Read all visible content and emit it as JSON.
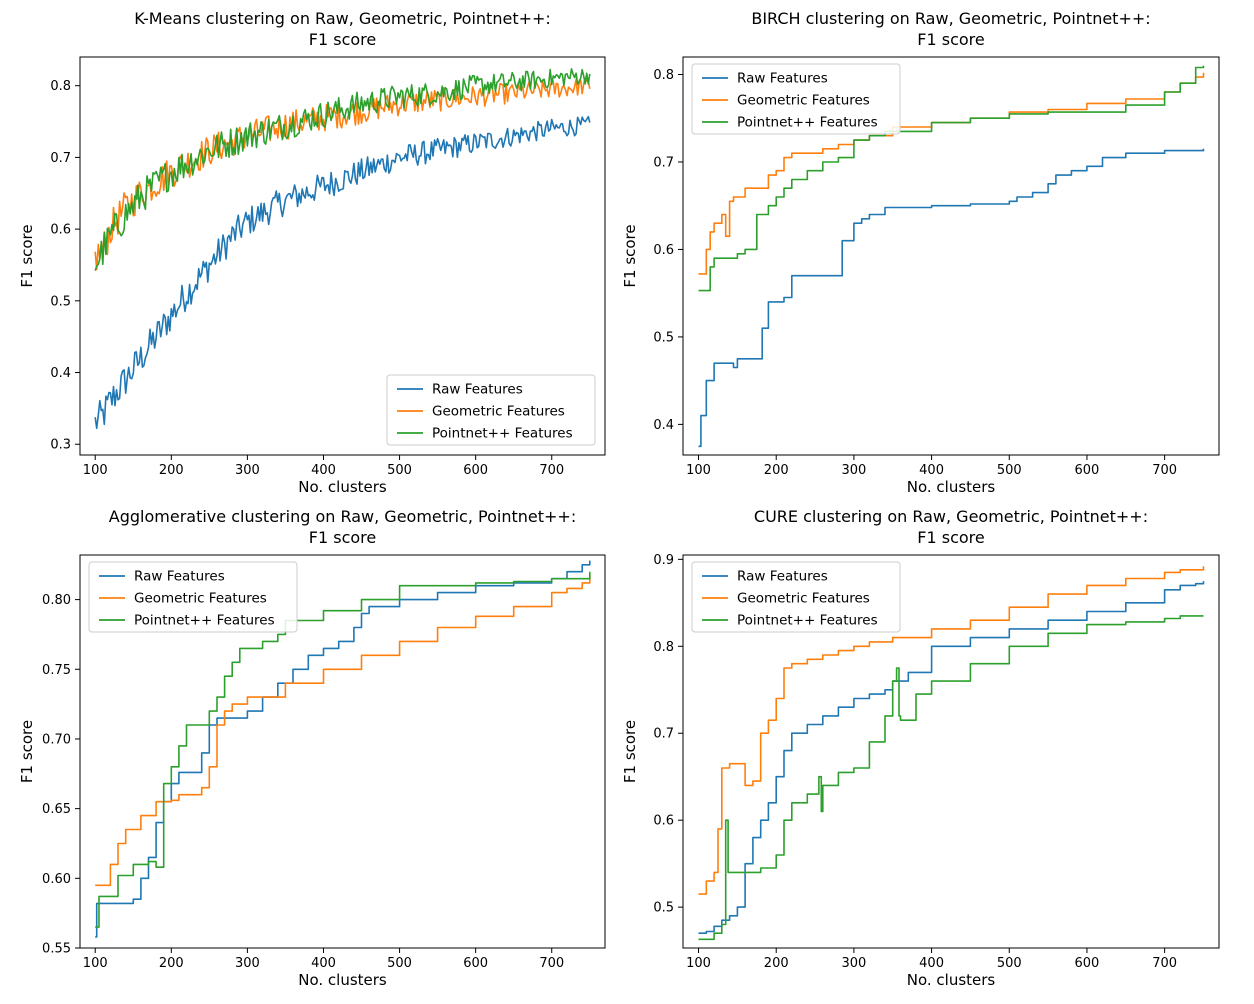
{
  "chart_data": [
    {
      "type": "line",
      "title": "K-Means clustering on Raw, Geometric, Pointnet++:\nF1 score",
      "xlabel": "No. clusters",
      "ylabel": "F1 score",
      "xlim": [
        80,
        770
      ],
      "ylim": [
        0.285,
        0.84
      ],
      "xticks": [
        100,
        200,
        300,
        400,
        500,
        600,
        700
      ],
      "yticks": [
        0.3,
        0.4,
        0.5,
        0.6,
        0.7,
        0.8
      ],
      "legend": "lower-right",
      "grid": false,
      "noise": 0.025,
      "series": [
        {
          "name": "Raw Features",
          "color": "#1f77b4",
          "x": [
            100,
            110,
            120,
            140,
            160,
            180,
            200,
            220,
            250,
            280,
            300,
            350,
            400,
            450,
            500,
            550,
            600,
            650,
            700,
            750
          ],
          "y": [
            0.33,
            0.34,
            0.36,
            0.39,
            0.42,
            0.45,
            0.48,
            0.51,
            0.55,
            0.59,
            0.61,
            0.64,
            0.66,
            0.68,
            0.7,
            0.71,
            0.72,
            0.73,
            0.74,
            0.745
          ]
        },
        {
          "name": "Geometric Features",
          "color": "#ff7f0e",
          "x": [
            100,
            110,
            120,
            140,
            160,
            200,
            250,
            300,
            350,
            400,
            450,
            500,
            550,
            600,
            650,
            700,
            750
          ],
          "y": [
            0.56,
            0.57,
            0.6,
            0.63,
            0.65,
            0.68,
            0.71,
            0.73,
            0.745,
            0.755,
            0.765,
            0.775,
            0.78,
            0.785,
            0.79,
            0.795,
            0.8
          ]
        },
        {
          "name": "Pointnet++ Features",
          "color": "#2ca02c",
          "x": [
            100,
            110,
            120,
            140,
            160,
            200,
            250,
            300,
            350,
            400,
            450,
            500,
            550,
            600,
            650,
            700,
            750
          ],
          "y": [
            0.55,
            0.57,
            0.59,
            0.62,
            0.645,
            0.68,
            0.71,
            0.73,
            0.745,
            0.76,
            0.775,
            0.785,
            0.79,
            0.8,
            0.805,
            0.81,
            0.815
          ]
        }
      ]
    },
    {
      "type": "line",
      "title": "BIRCH clustering on Raw, Geometric, Pointnet++:\nF1 score",
      "xlabel": "No. clusters",
      "ylabel": "F1 score",
      "xlim": [
        80,
        770
      ],
      "ylim": [
        0.365,
        0.82
      ],
      "xticks": [
        100,
        200,
        300,
        400,
        500,
        600,
        700
      ],
      "yticks": [
        0.4,
        0.5,
        0.6,
        0.7,
        0.8
      ],
      "legend": "upper-left",
      "grid": false,
      "noise": 0,
      "series": [
        {
          "name": "Raw Features",
          "color": "#1f77b4",
          "x": [
            100,
            103,
            105,
            110,
            115,
            120,
            130,
            140,
            145,
            150,
            180,
            182,
            190,
            200,
            210,
            220,
            240,
            250,
            260,
            280,
            285,
            290,
            300,
            310,
            320,
            340,
            400,
            450,
            500,
            510,
            520,
            530,
            550,
            560,
            580,
            600,
            620,
            650,
            700,
            750
          ],
          "y": [
            0.375,
            0.41,
            0.41,
            0.45,
            0.45,
            0.47,
            0.47,
            0.47,
            0.465,
            0.475,
            0.475,
            0.51,
            0.54,
            0.54,
            0.545,
            0.57,
            0.57,
            0.57,
            0.57,
            0.57,
            0.61,
            0.61,
            0.63,
            0.635,
            0.64,
            0.648,
            0.65,
            0.652,
            0.655,
            0.66,
            0.66,
            0.665,
            0.675,
            0.685,
            0.69,
            0.695,
            0.705,
            0.71,
            0.713,
            0.715
          ]
        },
        {
          "name": "Geometric Features",
          "color": "#ff7f0e",
          "x": [
            100,
            105,
            110,
            115,
            120,
            130,
            135,
            140,
            145,
            150,
            160,
            180,
            190,
            200,
            210,
            220,
            240,
            260,
            280,
            300,
            320,
            350,
            400,
            450,
            500,
            550,
            600,
            650,
            700,
            720,
            740,
            750
          ],
          "y": [
            0.572,
            0.572,
            0.6,
            0.62,
            0.63,
            0.64,
            0.615,
            0.655,
            0.66,
            0.66,
            0.67,
            0.67,
            0.685,
            0.69,
            0.705,
            0.71,
            0.71,
            0.715,
            0.72,
            0.725,
            0.73,
            0.74,
            0.745,
            0.75,
            0.757,
            0.76,
            0.767,
            0.772,
            0.78,
            0.79,
            0.797,
            0.802
          ]
        },
        {
          "name": "Pointnet++ Features",
          "color": "#2ca02c",
          "x": [
            100,
            110,
            115,
            120,
            140,
            150,
            160,
            170,
            175,
            180,
            190,
            200,
            210,
            220,
            240,
            260,
            280,
            300,
            320,
            340,
            400,
            450,
            500,
            550,
            600,
            650,
            700,
            720,
            740,
            750
          ],
          "y": [
            0.553,
            0.553,
            0.58,
            0.59,
            0.59,
            0.595,
            0.6,
            0.6,
            0.64,
            0.64,
            0.65,
            0.66,
            0.67,
            0.68,
            0.69,
            0.7,
            0.705,
            0.725,
            0.73,
            0.735,
            0.745,
            0.75,
            0.755,
            0.757,
            0.757,
            0.765,
            0.78,
            0.79,
            0.808,
            0.81
          ]
        }
      ]
    },
    {
      "type": "line",
      "title": "Agglomerative clustering on Raw, Geometric, Pointnet++:\nF1 score",
      "xlabel": "No. clusters",
      "ylabel": "F1 score",
      "xlim": [
        80,
        770
      ],
      "ylim": [
        0.55,
        0.832
      ],
      "xticks": [
        100,
        200,
        300,
        400,
        500,
        600,
        700
      ],
      "yticks": [
        0.55,
        0.6,
        0.65,
        0.7,
        0.75,
        0.8
      ],
      "legend": "upper-left",
      "grid": false,
      "noise": 0,
      "series": [
        {
          "name": "Raw Features",
          "color": "#1f77b4",
          "x": [
            100,
            102,
            110,
            120,
            150,
            160,
            170,
            180,
            190,
            200,
            210,
            220,
            240,
            250,
            260,
            280,
            300,
            320,
            340,
            360,
            380,
            400,
            420,
            440,
            450,
            460,
            500,
            550,
            600,
            650,
            700,
            720,
            740,
            750
          ],
          "y": [
            0.558,
            0.582,
            0.582,
            0.582,
            0.585,
            0.6,
            0.615,
            0.64,
            0.655,
            0.668,
            0.676,
            0.676,
            0.69,
            0.71,
            0.715,
            0.715,
            0.72,
            0.73,
            0.74,
            0.75,
            0.76,
            0.765,
            0.77,
            0.78,
            0.79,
            0.795,
            0.8,
            0.805,
            0.81,
            0.812,
            0.815,
            0.82,
            0.825,
            0.828
          ]
        },
        {
          "name": "Geometric Features",
          "color": "#ff7f0e",
          "x": [
            100,
            110,
            120,
            130,
            140,
            160,
            180,
            190,
            200,
            210,
            240,
            250,
            260,
            270,
            280,
            300,
            320,
            350,
            400,
            450,
            500,
            550,
            600,
            650,
            700,
            720,
            740,
            750
          ],
          "y": [
            0.595,
            0.595,
            0.61,
            0.625,
            0.635,
            0.645,
            0.655,
            0.655,
            0.656,
            0.66,
            0.665,
            0.68,
            0.71,
            0.72,
            0.725,
            0.73,
            0.73,
            0.74,
            0.75,
            0.76,
            0.77,
            0.78,
            0.788,
            0.795,
            0.805,
            0.808,
            0.812,
            0.818
          ]
        },
        {
          "name": "Pointnet++ Features",
          "color": "#2ca02c",
          "x": [
            100,
            102,
            105,
            110,
            130,
            150,
            170,
            180,
            190,
            200,
            210,
            220,
            230,
            250,
            260,
            270,
            280,
            290,
            300,
            320,
            340,
            350,
            400,
            450,
            500,
            550,
            600,
            650,
            700,
            750
          ],
          "y": [
            0.565,
            0.565,
            0.587,
            0.587,
            0.602,
            0.61,
            0.612,
            0.608,
            0.668,
            0.68,
            0.695,
            0.71,
            0.71,
            0.72,
            0.73,
            0.745,
            0.755,
            0.765,
            0.765,
            0.77,
            0.775,
            0.785,
            0.792,
            0.8,
            0.81,
            0.81,
            0.812,
            0.813,
            0.815,
            0.82
          ]
        }
      ]
    },
    {
      "type": "line",
      "title": "CURE clustering on Raw, Geometric, Pointnet++:\nF1 score",
      "xlabel": "No. clusters",
      "ylabel": "F1 score",
      "xlim": [
        80,
        770
      ],
      "ylim": [
        0.453,
        0.905
      ],
      "xticks": [
        100,
        200,
        300,
        400,
        500,
        600,
        700
      ],
      "yticks": [
        0.5,
        0.6,
        0.7,
        0.8,
        0.9
      ],
      "legend": "upper-left",
      "grid": false,
      "noise": 0,
      "series": [
        {
          "name": "Raw Features",
          "color": "#1f77b4",
          "x": [
            100,
            110,
            120,
            130,
            140,
            150,
            160,
            170,
            180,
            190,
            200,
            210,
            220,
            240,
            260,
            280,
            300,
            320,
            340,
            350,
            370,
            400,
            450,
            500,
            550,
            600,
            650,
            700,
            720,
            740,
            750
          ],
          "y": [
            0.47,
            0.472,
            0.478,
            0.485,
            0.49,
            0.5,
            0.55,
            0.58,
            0.6,
            0.62,
            0.65,
            0.68,
            0.7,
            0.71,
            0.72,
            0.73,
            0.74,
            0.745,
            0.75,
            0.76,
            0.77,
            0.8,
            0.81,
            0.82,
            0.83,
            0.84,
            0.85,
            0.865,
            0.87,
            0.872,
            0.875
          ]
        },
        {
          "name": "Geometric Features",
          "color": "#ff7f0e",
          "x": [
            100,
            110,
            120,
            125,
            130,
            140,
            150,
            160,
            170,
            180,
            190,
            200,
            210,
            220,
            240,
            260,
            280,
            300,
            320,
            350,
            400,
            450,
            500,
            550,
            600,
            650,
            700,
            720,
            750
          ],
          "y": [
            0.515,
            0.53,
            0.54,
            0.59,
            0.66,
            0.665,
            0.665,
            0.64,
            0.645,
            0.7,
            0.715,
            0.74,
            0.775,
            0.78,
            0.785,
            0.79,
            0.795,
            0.8,
            0.805,
            0.81,
            0.82,
            0.83,
            0.845,
            0.86,
            0.87,
            0.878,
            0.885,
            0.888,
            0.892
          ]
        },
        {
          "name": "Pointnet++ Features",
          "color": "#2ca02c",
          "x": [
            100,
            110,
            120,
            130,
            135,
            138,
            140,
            150,
            180,
            200,
            210,
            220,
            240,
            255,
            258,
            260,
            280,
            300,
            320,
            340,
            350,
            355,
            358,
            360,
            380,
            400,
            450,
            500,
            550,
            600,
            650,
            700,
            720,
            740,
            750
          ],
          "y": [
            0.463,
            0.463,
            0.47,
            0.48,
            0.6,
            0.54,
            0.54,
            0.54,
            0.545,
            0.56,
            0.6,
            0.62,
            0.63,
            0.65,
            0.61,
            0.64,
            0.655,
            0.66,
            0.69,
            0.72,
            0.76,
            0.775,
            0.72,
            0.715,
            0.745,
            0.76,
            0.78,
            0.8,
            0.815,
            0.825,
            0.828,
            0.832,
            0.835,
            0.835,
            0.835
          ]
        }
      ]
    }
  ]
}
